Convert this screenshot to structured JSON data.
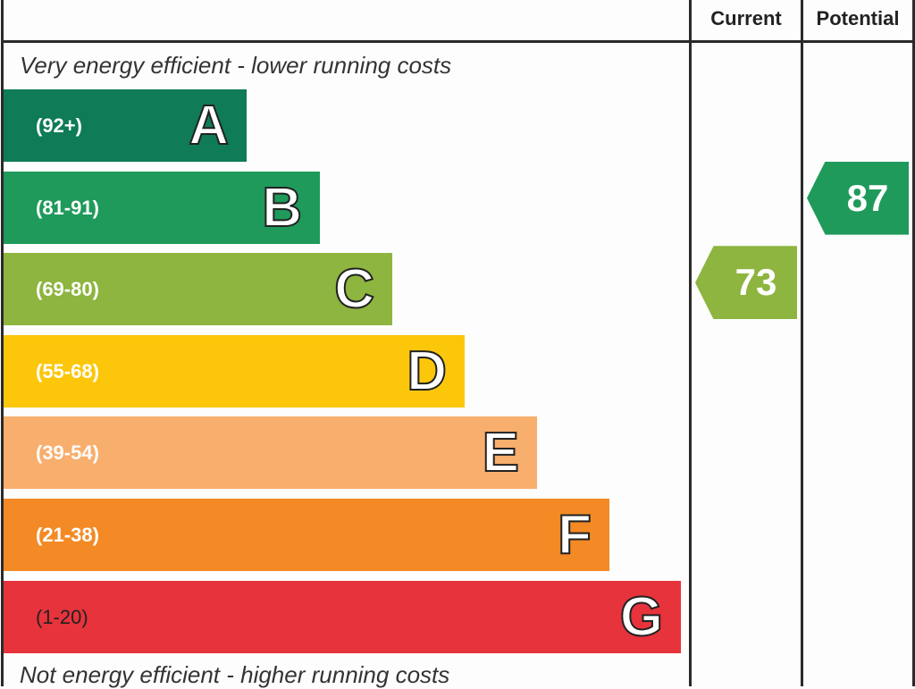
{
  "chart_data": {
    "type": "bar",
    "columns": [
      "Current",
      "Potential"
    ],
    "top_note": "Very energy efficient - lower running costs",
    "bottom_note": "Not energy efficient - higher running costs",
    "bands": [
      {
        "letter": "A",
        "range": "(92+)",
        "color": "#0f7b57"
      },
      {
        "letter": "B",
        "range": "(81-91)",
        "color": "#1f9a5b"
      },
      {
        "letter": "C",
        "range": "(69-80)",
        "color": "#8db53f"
      },
      {
        "letter": "D",
        "range": "(55-68)",
        "color": "#fcc70b"
      },
      {
        "letter": "E",
        "range": "(39-54)",
        "color": "#f8ae6c"
      },
      {
        "letter": "F",
        "range": "(21-38)",
        "color": "#f38a25"
      },
      {
        "letter": "G",
        "range": "(1-20)",
        "color": "#e7333c"
      }
    ],
    "current": {
      "value": 73,
      "band": "C",
      "color": "#8db53f"
    },
    "potential": {
      "value": 87,
      "band": "B",
      "color": "#1f9a5b"
    }
  }
}
